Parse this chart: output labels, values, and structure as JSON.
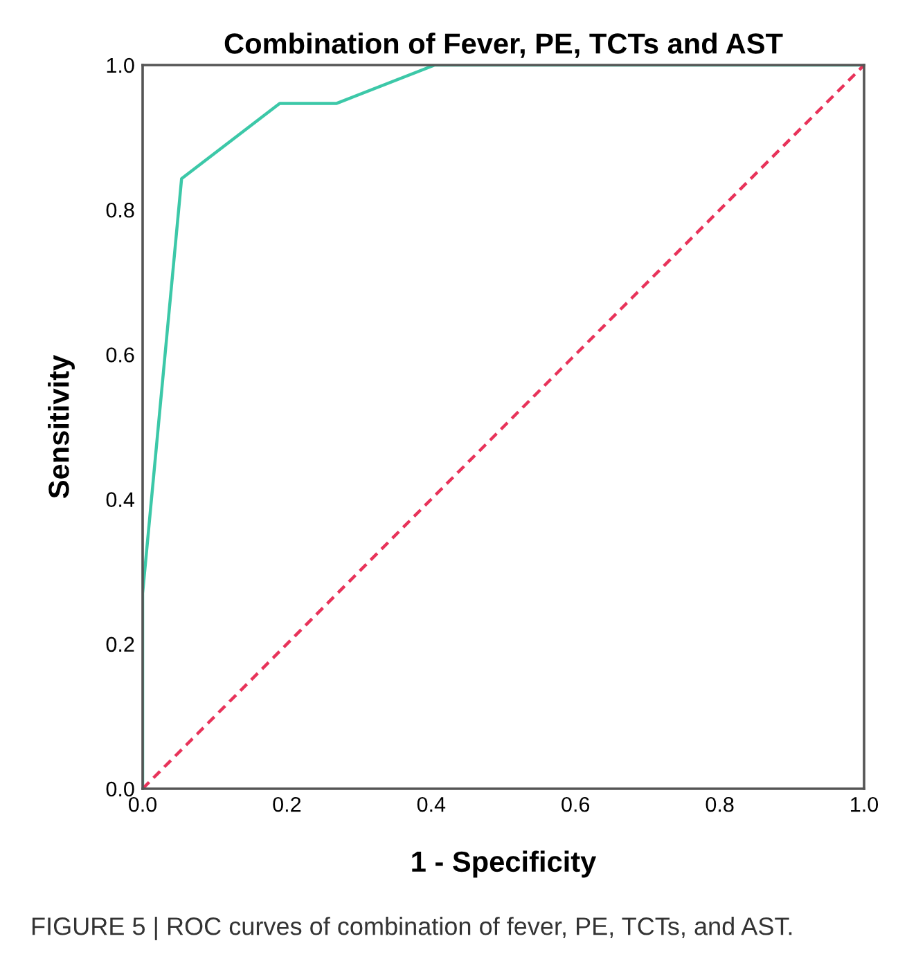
{
  "chart_data": {
    "type": "line",
    "title": "Combination of Fever, PE, TCTs and AST",
    "xlabel": "1 - Specificity",
    "ylabel": "Sensitivity",
    "series": [
      {
        "color": "#3cc8a8",
        "x": [
          0,
          0,
          0.054,
          0.19,
          0.269,
          0.405,
          1.0
        ],
        "values": [
          0,
          0.27,
          0.843,
          0.947,
          0.947,
          1.0,
          1.0
        ],
        "line_style": "solid"
      },
      {
        "color": "#e8335a",
        "x": [
          0,
          1.0
        ],
        "values": [
          0,
          1.0
        ],
        "line_style": "dashed"
      }
    ],
    "xlim": [
      0,
      1.0
    ],
    "ylim": [
      0,
      1.0
    ],
    "xticks": [
      {
        "value": 0,
        "label": "0.0"
      },
      0.2,
      0.4,
      0.6,
      0.8,
      {
        "value": 1,
        "label": "1.0"
      }
    ],
    "yticks": [
      {
        "value": 0,
        "label": "0.0"
      },
      0.2,
      0.4,
      0.6,
      0.8,
      {
        "value": 1,
        "label": "1.0"
      }
    ],
    "grid": false,
    "legend": false,
    "annotations": [
      "FIGURE 5 | ROC curves of combination of fever, PE, TCTs, and AST."
    ]
  }
}
